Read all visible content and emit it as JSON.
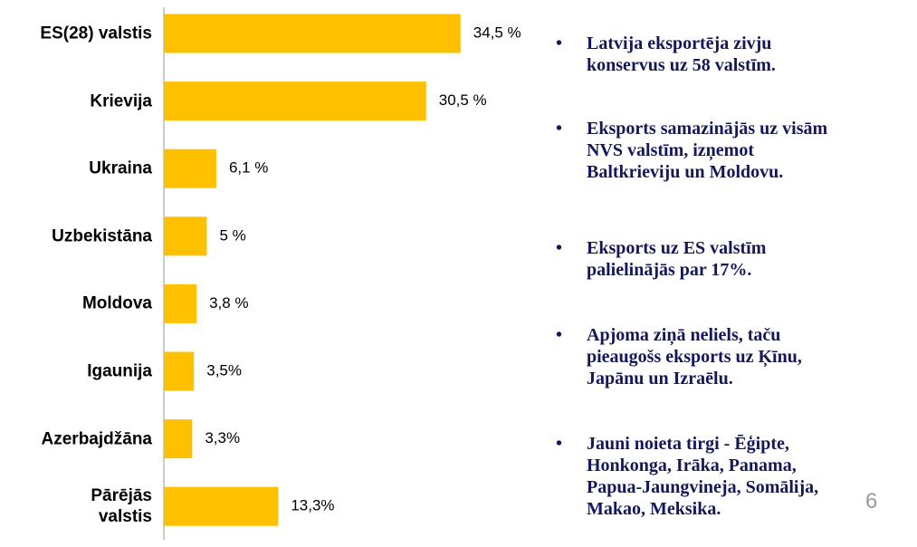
{
  "chart_data": {
    "type": "hbar",
    "categories": [
      "ES(28) valstis",
      "Krievija",
      "Ukraina",
      "Uzbekistāna",
      "Moldova",
      "Igaunija",
      "Azerbajdžāna",
      "Pārējās\nvalstis"
    ],
    "values": [
      34.5,
      30.5,
      6.1,
      5,
      3.8,
      3.5,
      3.3,
      13.3
    ],
    "value_labels": [
      "34,5 %",
      "30,5 %",
      "6,1 %",
      "5 %",
      "3,8 %",
      "3,5%",
      "3,3%",
      "13,3%"
    ],
    "color": "#ffc000"
  },
  "bullets": [
    "Latvija eksportēja zivju\nkonservus uz 58 valstīm.",
    "Eksports  samazinājās uz visām\nNVS valstīm, izņemot\nBaltkrieviju un Moldovu.",
    "Eksports uz ES valstīm\npalielinājās par 17%.",
    "Apjoma ziņā neliels, taču\npieaugošs eksports uz Ķīnu,\nJapānu un Izraēlu.",
    "Jauni noieta tirgi -  Ēģipte,\nHonkonga, Irāka, Panama,\nPapua-Jaungvineja, Somālija,\nMakao, Meksika."
  ],
  "page_number": "6"
}
